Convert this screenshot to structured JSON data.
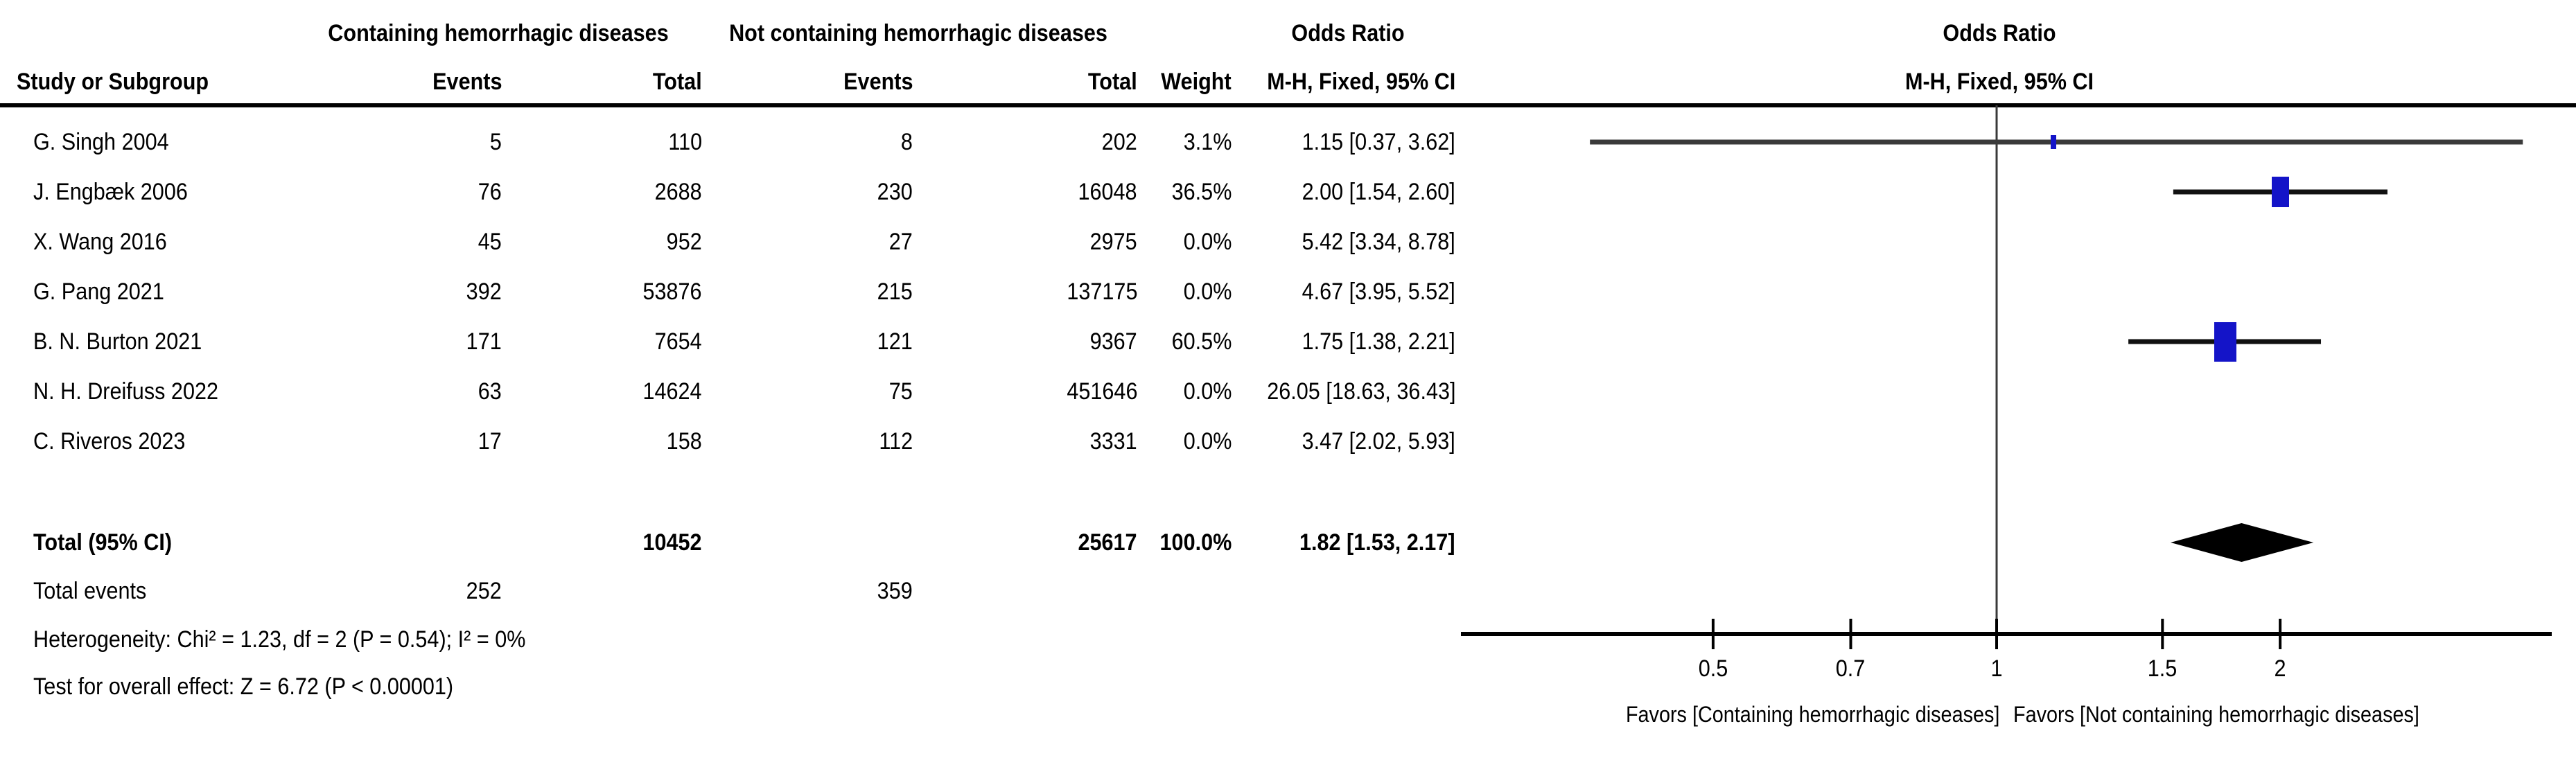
{
  "table": {
    "group1_header": "Containing hemorrhagic diseases",
    "group2_header": "Not containing hemorrhagic diseases",
    "or_column_header": "Odds Ratio",
    "col_headers": {
      "study": "Study or Subgroup",
      "events": "Events",
      "total": "Total",
      "weight": "Weight",
      "mh_ci": "M-H, Fixed, 95% CI"
    },
    "total_label": "Total (95% CI)",
    "total_events_label": "Total events",
    "heterogeneity_text": "Heterogeneity: Chi² = 1.23, df = 2 (P = 0.54); I² = 0%",
    "overall_effect_text": "Test for overall effect: Z = 6.72 (P < 0.00001)"
  },
  "chart_data": {
    "type": "forest",
    "title": "Odds Ratio",
    "subtitle": "M-H, Fixed, 95% CI",
    "x_scale": "log10",
    "xlim": [
      0.27,
      3.7
    ],
    "null_line": 1,
    "ticks": [
      0.5,
      0.7,
      1,
      1.5,
      2
    ],
    "tick_labels": [
      "0.5",
      "0.7",
      "1",
      "1.5",
      "2"
    ],
    "favors_left": "Favors [Containing hemorrhagic diseases]",
    "favors_right": "Favors [Not containing hemorrhagic diseases]",
    "marker_color": "#1414c8",
    "diamond_color": "#000000",
    "studies": [
      {
        "name": "G. Singh 2004",
        "events1": 5,
        "total1": 110,
        "events2": 8,
        "total2": 202,
        "weight": "3.1%",
        "weight_value": 3.1,
        "or": 1.15,
        "ci_low": 0.37,
        "ci_high": 3.62,
        "or_text": "1.15 [0.37, 3.62]"
      },
      {
        "name": "J. Engbæk 2006",
        "events1": 76,
        "total1": 2688,
        "events2": 230,
        "total2": 16048,
        "weight": "36.5%",
        "weight_value": 36.5,
        "or": 2.0,
        "ci_low": 1.54,
        "ci_high": 2.6,
        "or_text": "2.00 [1.54, 2.60]"
      },
      {
        "name": "X. Wang 2016",
        "events1": 45,
        "total1": 952,
        "events2": 27,
        "total2": 2975,
        "weight": "0.0%",
        "weight_value": 0,
        "or": 5.42,
        "ci_low": 3.34,
        "ci_high": 8.78,
        "or_text": "5.42 [3.34, 8.78]"
      },
      {
        "name": "G. Pang 2021",
        "events1": 392,
        "total1": 53876,
        "events2": 215,
        "total2": 137175,
        "weight": "0.0%",
        "weight_value": 0,
        "or": 4.67,
        "ci_low": 3.95,
        "ci_high": 5.52,
        "or_text": "4.67 [3.95, 5.52]"
      },
      {
        "name": "B. N. Burton 2021",
        "events1": 171,
        "total1": 7654,
        "events2": 121,
        "total2": 9367,
        "weight": "60.5%",
        "weight_value": 60.5,
        "or": 1.75,
        "ci_low": 1.38,
        "ci_high": 2.21,
        "or_text": "1.75 [1.38, 2.21]"
      },
      {
        "name": "N. H. Dreifuss 2022",
        "events1": 63,
        "total1": 14624,
        "events2": 75,
        "total2": 451646,
        "weight": "0.0%",
        "weight_value": 0,
        "or": 26.05,
        "ci_low": 18.63,
        "ci_high": 36.43,
        "or_text": "26.05 [18.63, 36.43]"
      },
      {
        "name": "C. Riveros 2023",
        "events1": 17,
        "total1": 158,
        "events2": 112,
        "total2": 3331,
        "weight": "0.0%",
        "weight_value": 0,
        "or": 3.47,
        "ci_low": 2.02,
        "ci_high": 5.93,
        "or_text": "3.47 [2.02, 5.93]"
      }
    ],
    "total": {
      "total1": 10452,
      "total2": 25617,
      "weight": "100.0%",
      "or": 1.82,
      "ci_low": 1.53,
      "ci_high": 2.17,
      "or_text": "1.82 [1.53, 2.17]",
      "events1": 252,
      "events2": 359
    }
  }
}
